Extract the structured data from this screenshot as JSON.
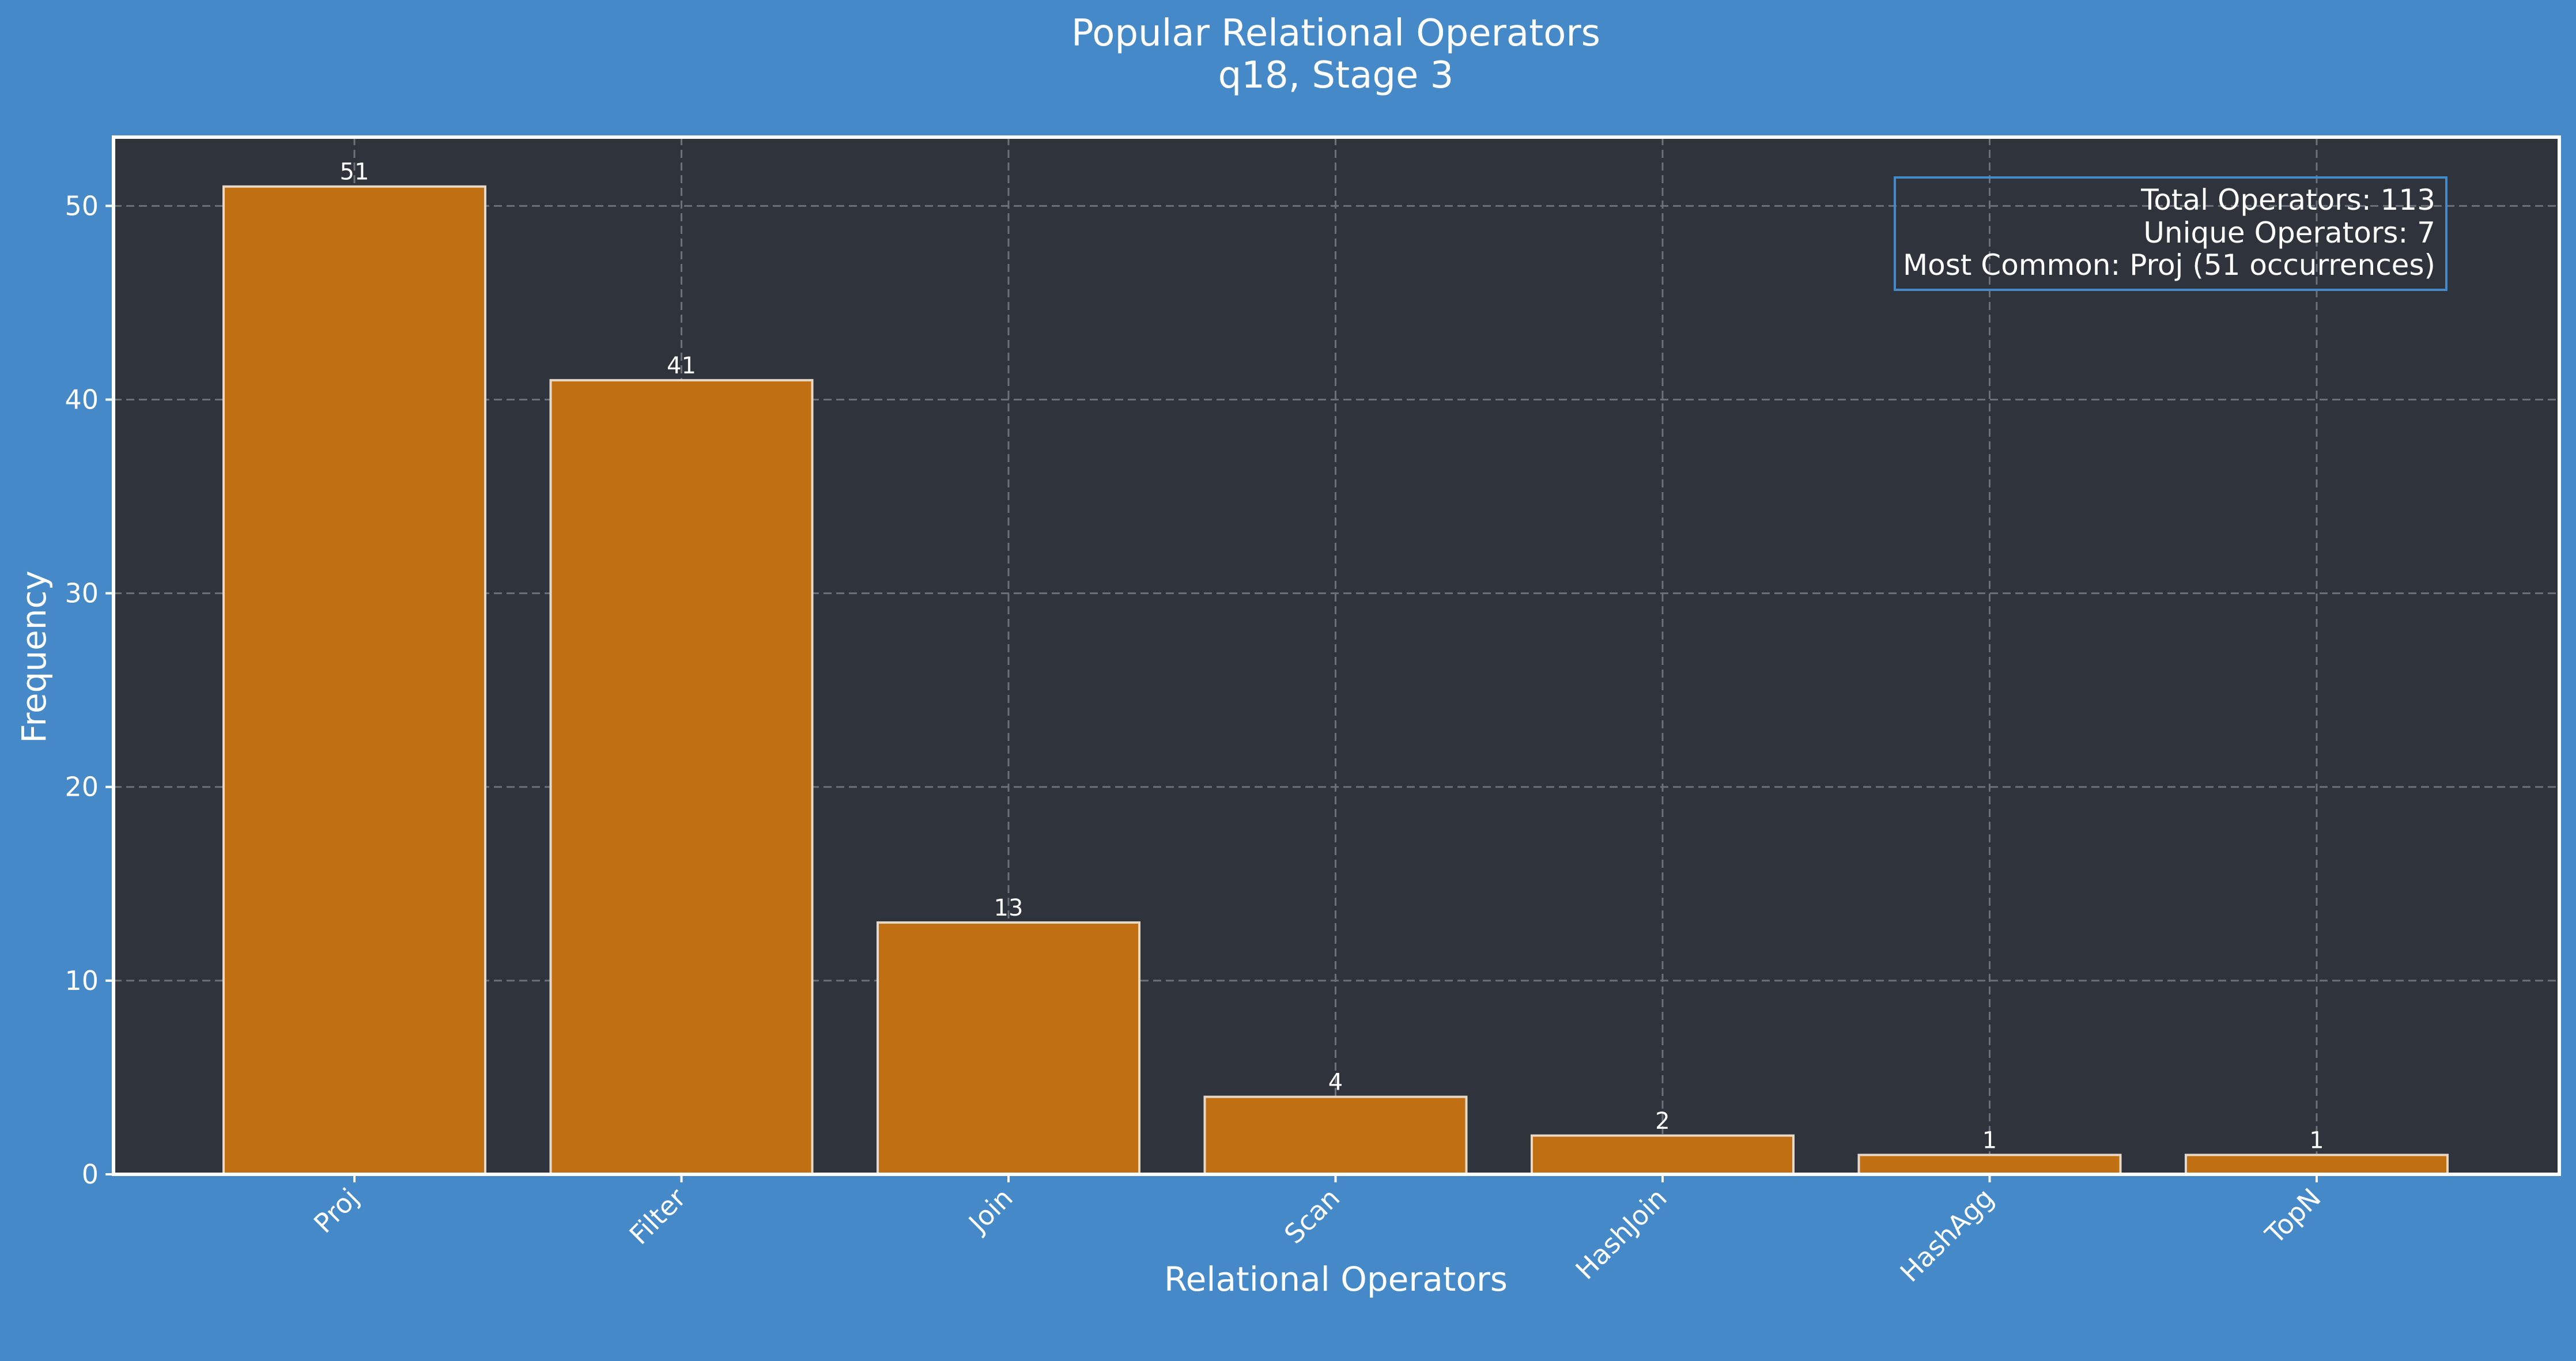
{
  "colors": {
    "page_background": "#4589c8",
    "plot_background": "#2e333c",
    "bar_fill": "#c07012",
    "bar_edge": "#e8d8c8",
    "grid": "#6b7079",
    "text": "#ffffff",
    "stats_box_border": "#4589c8"
  },
  "chart_data": {
    "type": "bar",
    "title": "Popular Relational Operators",
    "subtitle": "q18, Stage 3",
    "xlabel": "Relational Operators",
    "ylabel": "Frequency",
    "categories": [
      "Proj",
      "Filter",
      "Join",
      "Scan",
      "HashJoin",
      "HashAgg",
      "TopN"
    ],
    "values": [
      51,
      41,
      13,
      4,
      2,
      1,
      1
    ],
    "value_labels": [
      "51",
      "41",
      "13",
      "4",
      "2",
      "1",
      "1"
    ],
    "ylim": [
      0,
      53.55
    ],
    "yticks": [
      0,
      10,
      20,
      30,
      40,
      50
    ],
    "ytick_labels": [
      "0",
      "10",
      "20",
      "30",
      "40",
      "50"
    ],
    "xtick_rotation_deg": -45,
    "grid": true,
    "grid_style": "dashed",
    "stats_box": {
      "placement": "top-right",
      "lines": [
        "Total Operators: 113",
        "Unique Operators: 7",
        "Most Common: Proj (51 occurrences)"
      ]
    }
  }
}
